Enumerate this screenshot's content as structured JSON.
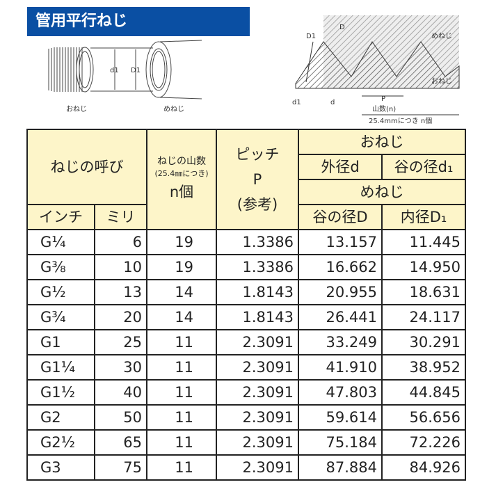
{
  "title": "管用平行ねじ",
  "figure_left": {
    "male_label": "おねじ",
    "female_label": "めねじ",
    "d1": "d1",
    "D1": "D1"
  },
  "figure_right": {
    "female_label": "めねじ",
    "male_label": "おねじ",
    "D": "D",
    "D1": "D1",
    "d": "d",
    "d1": "d1",
    "P": "P",
    "n_label": "山数(n)",
    "note": "25.4mmにつき n個"
  },
  "table": {
    "h_name": "ねじの呼び",
    "h_inch": "インチ",
    "h_mm": "ミリ",
    "h_threads_1": "ねじの山数",
    "h_threads_2": "(25.4㎜につき)",
    "h_threads_3": "n個",
    "h_pitch_1": "ピッチ",
    "h_pitch_2": "P",
    "h_pitch_3": "(参考)",
    "h_male": "おねじ",
    "h_outer_d": "外径d",
    "h_root_d1": "谷の径d₁",
    "h_female": "めねじ",
    "h_root_D": "谷の径D",
    "h_inner_D1": "内径D₁",
    "rows": [
      [
        "G¼",
        "6",
        "19",
        "1.3386",
        "13.157",
        "11.445"
      ],
      [
        "G⅜",
        "10",
        "19",
        "1.3386",
        "16.662",
        "14.950"
      ],
      [
        "G½",
        "13",
        "14",
        "1.8143",
        "20.955",
        "18.631"
      ],
      [
        "G¾",
        "20",
        "14",
        "1.8143",
        "26.441",
        "24.117"
      ],
      [
        "G1",
        "25",
        "11",
        "2.3091",
        "33.249",
        "30.291"
      ],
      [
        "G1¼",
        "30",
        "11",
        "2.3091",
        "41.910",
        "38.952"
      ],
      [
        "G1½",
        "40",
        "11",
        "2.3091",
        "47.803",
        "44.845"
      ],
      [
        "G2",
        "50",
        "11",
        "2.3091",
        "59.614",
        "56.656"
      ],
      [
        "G2½",
        "65",
        "11",
        "2.3091",
        "75.184",
        "72.226"
      ],
      [
        "G3",
        "75",
        "11",
        "2.3091",
        "87.884",
        "84.926"
      ]
    ]
  },
  "colors": {
    "title_bg": "#0a4fa3",
    "header_bg": "#fdf5c9"
  }
}
